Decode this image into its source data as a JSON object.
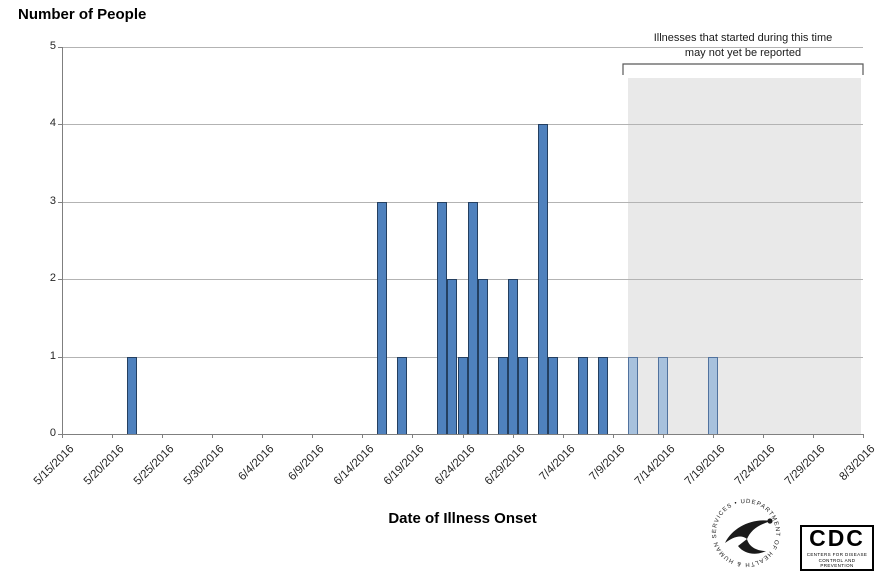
{
  "chart_data": {
    "type": "bar",
    "title": "Number of People",
    "xlabel": "Date of Illness Onset",
    "ylabel": "",
    "ylim": [
      0,
      5
    ],
    "yticks": [
      0,
      1,
      2,
      3,
      4,
      5
    ],
    "grid": "horizontal",
    "legend": null,
    "x_tick_labels": [
      "5/15/2016",
      "5/20/2016",
      "5/25/2016",
      "5/30/2016",
      "6/4/2016",
      "6/9/2016",
      "6/14/2016",
      "6/19/2016",
      "6/24/2016",
      "6/29/2016",
      "7/4/2016",
      "7/9/2016",
      "7/14/2016",
      "7/19/2016",
      "7/24/2016",
      "7/29/2016",
      "8/3/2016"
    ],
    "bars": [
      {
        "date": "5/22/2016",
        "value": 1,
        "recent": false
      },
      {
        "date": "6/16/2016",
        "value": 3,
        "recent": false
      },
      {
        "date": "6/18/2016",
        "value": 1,
        "recent": false
      },
      {
        "date": "6/22/2016",
        "value": 3,
        "recent": false
      },
      {
        "date": "6/23/2016",
        "value": 2,
        "recent": false
      },
      {
        "date": "6/24/2016",
        "value": 1,
        "recent": false
      },
      {
        "date": "6/25/2016",
        "value": 3,
        "recent": false
      },
      {
        "date": "6/26/2016",
        "value": 2,
        "recent": false
      },
      {
        "date": "6/28/2016",
        "value": 1,
        "recent": false
      },
      {
        "date": "6/29/2016",
        "value": 2,
        "recent": false
      },
      {
        "date": "6/30/2016",
        "value": 1,
        "recent": false
      },
      {
        "date": "7/2/2016",
        "value": 4,
        "recent": false
      },
      {
        "date": "7/3/2016",
        "value": 1,
        "recent": false
      },
      {
        "date": "7/6/2016",
        "value": 1,
        "recent": false
      },
      {
        "date": "7/8/2016",
        "value": 1,
        "recent": false
      },
      {
        "date": "7/11/2016",
        "value": 1,
        "recent": true
      },
      {
        "date": "7/14/2016",
        "value": 1,
        "recent": true
      },
      {
        "date": "7/19/2016",
        "value": 1,
        "recent": true
      }
    ],
    "shaded_region": {
      "start": "7/11/2016",
      "end": "8/3/2016",
      "note_line1": "Illnesses that started during this time",
      "note_line2": "may not yet be reported"
    },
    "colors": {
      "bar_fill": "#4f81bd",
      "bar_border": "#243f60",
      "recent_bar_fill": "#a7c1dd",
      "recent_bar_border": "#51729e",
      "shade": "#e9e9e9",
      "gridline": "#b3b3b3",
      "axis": "#7f7f7f"
    }
  },
  "logos": {
    "hhs_ring_text": "DEPARTMENT OF HEALTH & HUMAN SERVICES • USA •",
    "cdc_acronym": "CDC",
    "cdc_sub_line1": "Centers for Disease",
    "cdc_sub_line2": "Control and Prevention"
  }
}
